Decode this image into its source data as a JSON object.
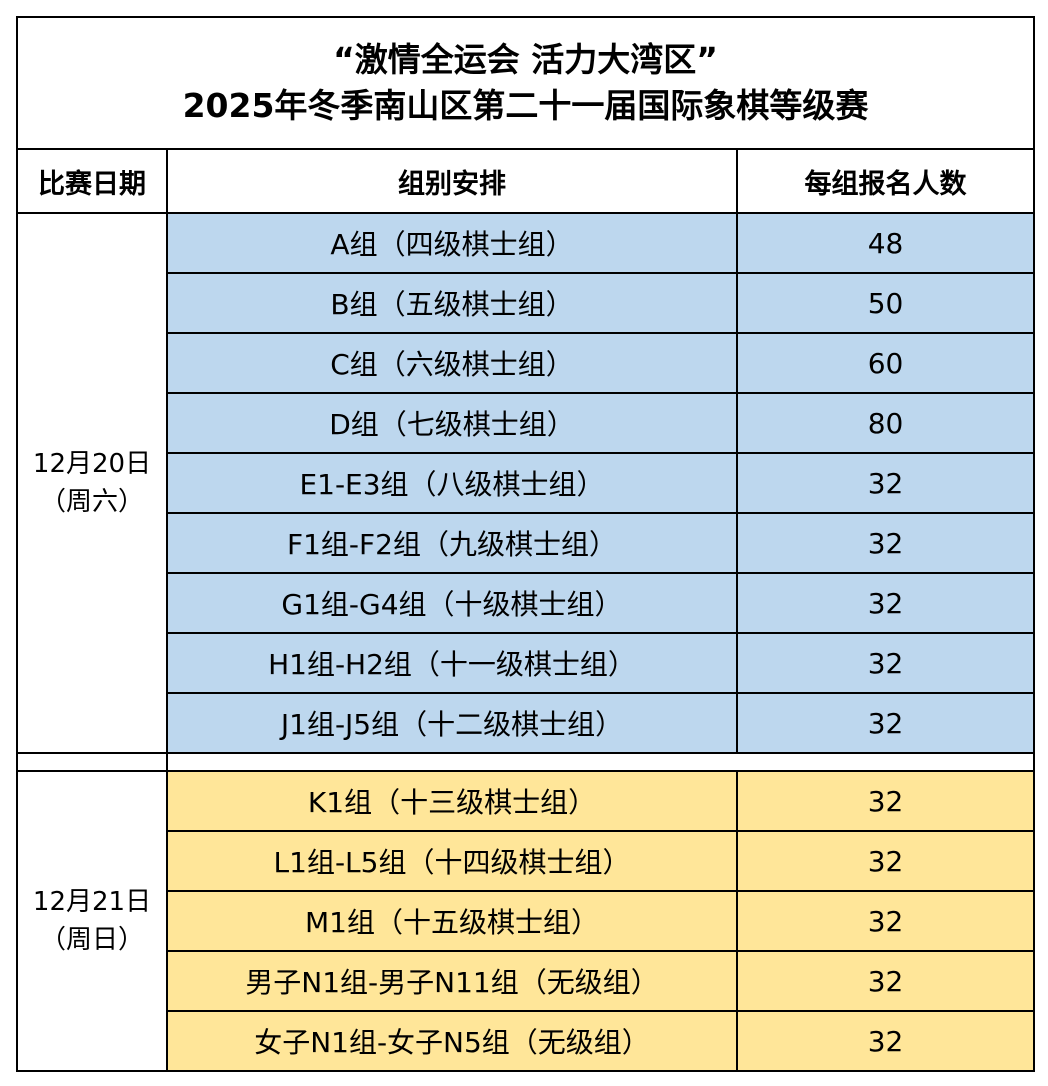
{
  "title": {
    "line1": "“激情全运会 活力大湾区”",
    "line2": "2025年冬季南山区第二十一届国际象棋等级赛"
  },
  "headers": [
    "比赛日期",
    "组别安排",
    "每组报名人数"
  ],
  "colors": {
    "day1_fill": "#BDD7EE",
    "day2_fill": "#FFE699"
  },
  "day1": {
    "date": "12月20日",
    "weekday": "（周六）",
    "rows": [
      {
        "group": "A组（四级棋士组）",
        "count": "48"
      },
      {
        "group": "B组（五级棋士组）",
        "count": "50"
      },
      {
        "group": "C组（六级棋士组）",
        "count": "60"
      },
      {
        "group": "D组（七级棋士组）",
        "count": "80"
      },
      {
        "group": "E1-E3组（八级棋士组）",
        "count": "32"
      },
      {
        "group": "F1组-F2组（九级棋士组）",
        "count": "32"
      },
      {
        "group": "G1组-G4组（十级棋士组）",
        "count": "32"
      },
      {
        "group": "H1组-H2组（十一级棋士组）",
        "count": "32"
      },
      {
        "group": "J1组-J5组（十二级棋士组）",
        "count": "32"
      }
    ]
  },
  "day2": {
    "date": "12月21日",
    "weekday": "（周日）",
    "rows": [
      {
        "group": "K1组（十三级棋士组）",
        "count": "32"
      },
      {
        "group": "L1组-L5组（十四级棋士组）",
        "count": "32"
      },
      {
        "group": "M1组（十五级棋士组）",
        "count": "32"
      },
      {
        "group": "男子N1组-男子N11组（无级组）",
        "count": "32"
      },
      {
        "group": "女子N1组-女子N5组（无级组）",
        "count": "32"
      }
    ]
  }
}
